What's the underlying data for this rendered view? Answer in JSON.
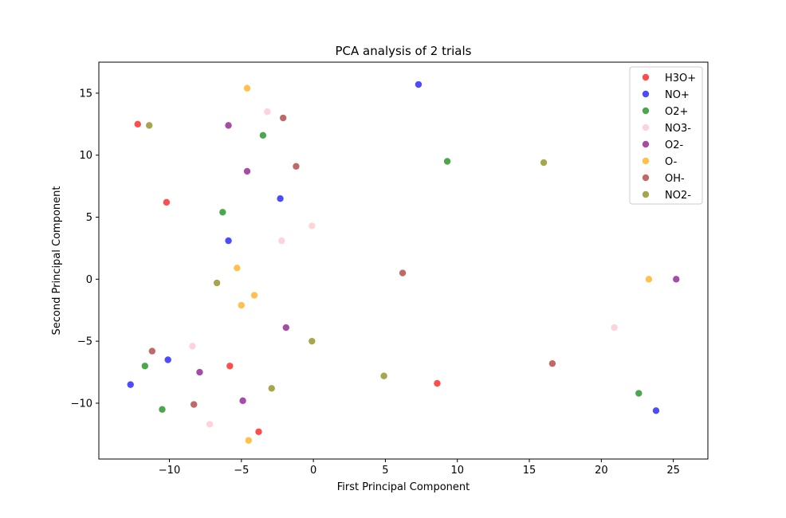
{
  "chart_data": {
    "type": "scatter",
    "title": "PCA analysis of 2 trials",
    "xlabel": "First Principal Component",
    "ylabel": "Second Principal Component",
    "xlim": [
      -14.9,
      27.4
    ],
    "ylim": [
      -14.5,
      17.5
    ],
    "xticks": [
      -10,
      -5,
      0,
      5,
      10,
      15,
      20,
      25
    ],
    "yticks": [
      -10,
      -5,
      0,
      5,
      10,
      15
    ],
    "grid": false,
    "legend_position": "top-right",
    "series": [
      {
        "name": "H3O+",
        "color": "#ff0000",
        "points": [
          [
            -12.2,
            12.5
          ],
          [
            -10.2,
            6.2
          ],
          [
            -5.8,
            -7.0
          ],
          [
            -3.8,
            -12.3
          ],
          [
            8.6,
            -8.4
          ]
        ]
      },
      {
        "name": "NO+",
        "color": "#0000ff",
        "points": [
          [
            7.3,
            15.7
          ],
          [
            -2.3,
            6.5
          ],
          [
            -5.9,
            3.1
          ],
          [
            -10.1,
            -6.5
          ],
          [
            -12.7,
            -8.5
          ],
          [
            23.8,
            -10.6
          ]
        ]
      },
      {
        "name": "O2+",
        "color": "#008000",
        "points": [
          [
            -3.5,
            11.6
          ],
          [
            9.3,
            9.5
          ],
          [
            -6.3,
            5.4
          ],
          [
            -11.7,
            -7.0
          ],
          [
            -10.5,
            -10.5
          ],
          [
            22.6,
            -9.2
          ]
        ]
      },
      {
        "name": "NO3-",
        "color": "#ffc0cb",
        "points": [
          [
            -3.2,
            13.5
          ],
          [
            23.2,
            8.7
          ],
          [
            -0.1,
            4.3
          ],
          [
            -2.2,
            3.1
          ],
          [
            -8.4,
            -5.4
          ],
          [
            20.9,
            -3.9
          ],
          [
            -7.2,
            -11.7
          ]
        ]
      },
      {
        "name": "O2-",
        "color": "#800080",
        "points": [
          [
            -5.9,
            12.4
          ],
          [
            -4.6,
            8.7
          ],
          [
            -1.9,
            -3.9
          ],
          [
            -7.9,
            -7.5
          ],
          [
            -4.9,
            -9.8
          ],
          [
            25.2,
            0.0
          ]
        ]
      },
      {
        "name": "O-",
        "color": "#ffa500",
        "points": [
          [
            -4.6,
            15.4
          ],
          [
            -5.3,
            0.9
          ],
          [
            -4.1,
            -1.3
          ],
          [
            -5.0,
            -2.1
          ],
          [
            -4.5,
            -13.0
          ],
          [
            23.3,
            0.0
          ]
        ]
      },
      {
        "name": "OH-",
        "color": "#a52a2a",
        "points": [
          [
            -2.1,
            13.0
          ],
          [
            -1.2,
            9.1
          ],
          [
            6.2,
            0.5
          ],
          [
            -11.2,
            -5.8
          ],
          [
            -8.3,
            -10.1
          ],
          [
            16.6,
            -6.8
          ]
        ]
      },
      {
        "name": "NO2-",
        "color": "#808000",
        "points": [
          [
            -11.4,
            12.4
          ],
          [
            16.0,
            9.4
          ],
          [
            -6.7,
            -0.3
          ],
          [
            -0.1,
            -5.0
          ],
          [
            -2.9,
            -8.8
          ],
          [
            4.9,
            -7.8
          ]
        ]
      }
    ]
  }
}
